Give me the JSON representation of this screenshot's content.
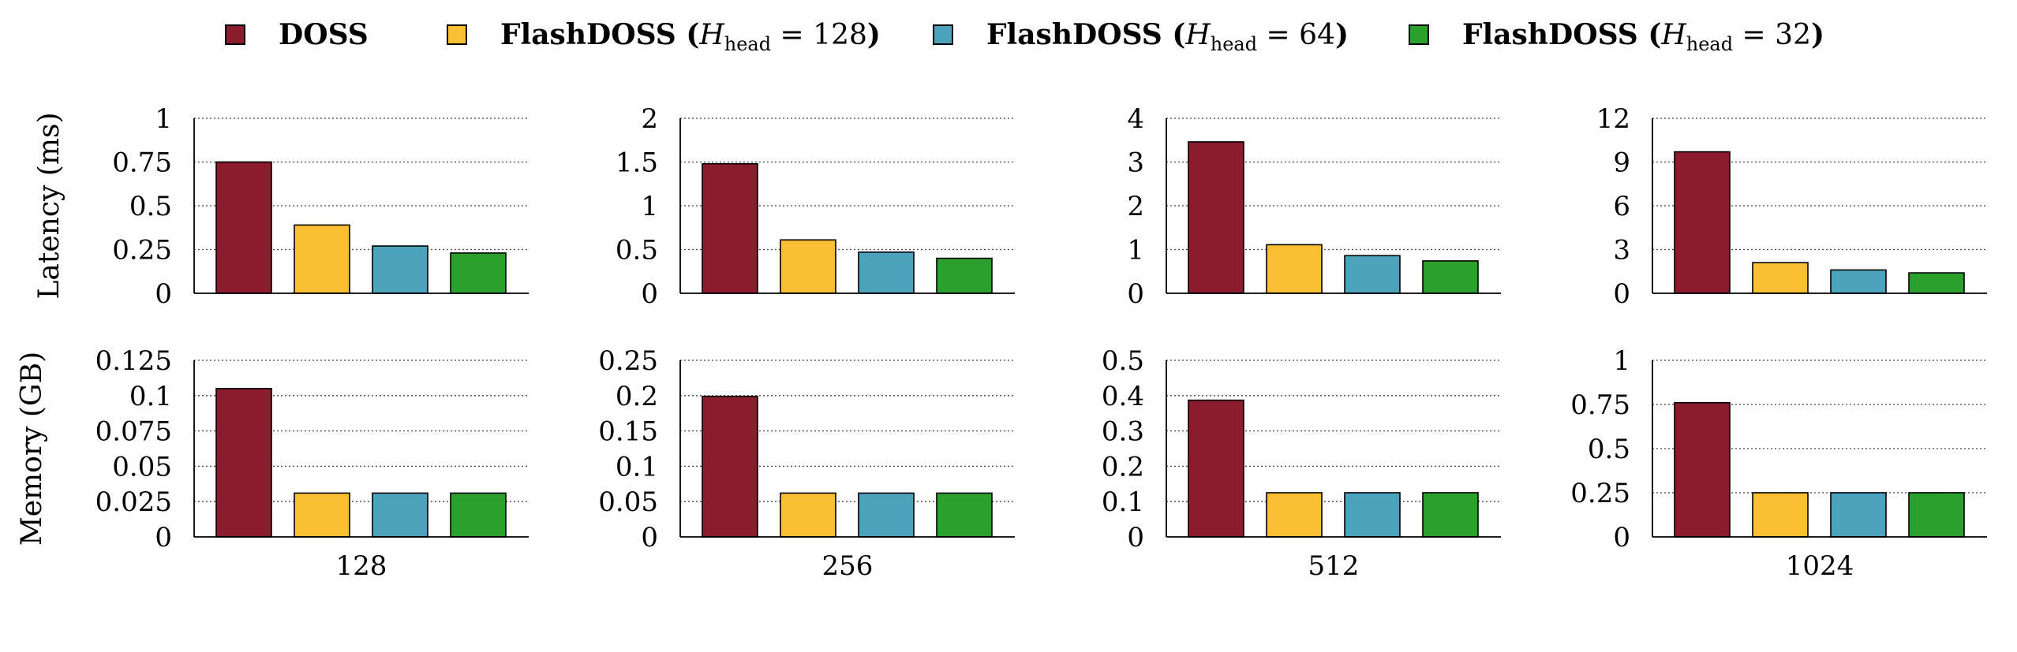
{
  "legend": [
    {
      "name": "DOSS",
      "prefix": "DOSS",
      "hvar": "",
      "hsub": "",
      "hval": "",
      "color": "#8B1C2E"
    },
    {
      "name": "FlashDOSS (H_head = 128)",
      "prefix": "FlashDOSS (",
      "hvar": "H",
      "hsub": "head",
      "hval": "128",
      "color": "#FBBF33"
    },
    {
      "name": "FlashDOSS (H_head = 64)",
      "prefix": "FlashDOSS (",
      "hvar": "H",
      "hsub": "head",
      "hval": "64",
      "color": "#4EA3BC"
    },
    {
      "name": "FlashDOSS (H_head = 32)",
      "prefix": "FlashDOSS (",
      "hvar": "H",
      "hsub": "head",
      "hval": "32",
      "color": "#2CA02C"
    }
  ],
  "row_labels": [
    "Latency (ms)",
    "Memory (GB)"
  ],
  "chart_data": [
    {
      "type": "bar",
      "metric": "latency",
      "xlabel": "128",
      "ylabel": "Latency (ms)",
      "ylim": [
        0,
        1
      ],
      "yticks": [
        "0",
        "0.25",
        "0.5",
        "0.75",
        "1"
      ],
      "ytick_values": [
        0,
        0.25,
        0.5,
        0.75,
        1
      ],
      "grid": true,
      "values": [
        0.75,
        0.39,
        0.27,
        0.23
      ]
    },
    {
      "type": "bar",
      "metric": "latency",
      "xlabel": "256",
      "ylabel": "",
      "ylim": [
        0,
        2
      ],
      "yticks": [
        "0",
        "0.5",
        "1",
        "1.5",
        "2"
      ],
      "ytick_values": [
        0,
        0.5,
        1,
        1.5,
        2
      ],
      "grid": true,
      "values": [
        1.48,
        0.61,
        0.47,
        0.4
      ]
    },
    {
      "type": "bar",
      "metric": "latency",
      "xlabel": "512",
      "ylabel": "",
      "ylim": [
        0,
        4
      ],
      "yticks": [
        "0",
        "1",
        "2",
        "3",
        "4"
      ],
      "ytick_values": [
        0,
        1,
        2,
        3,
        4
      ],
      "grid": true,
      "values": [
        3.46,
        1.11,
        0.86,
        0.74
      ]
    },
    {
      "type": "bar",
      "metric": "latency",
      "xlabel": "1024",
      "ylabel": "",
      "ylim": [
        0,
        12
      ],
      "yticks": [
        "0",
        "3",
        "6",
        "9",
        "12"
      ],
      "ytick_values": [
        0,
        3,
        6,
        9,
        12
      ],
      "grid": true,
      "values": [
        9.7,
        2.1,
        1.6,
        1.4
      ]
    },
    {
      "type": "bar",
      "metric": "memory",
      "xlabel": "128",
      "ylabel": "Memory (GB)",
      "ylim": [
        0,
        0.125
      ],
      "yticks": [
        "0",
        "0.025",
        "0.05",
        "0.075",
        "0.1",
        "0.125"
      ],
      "ytick_values": [
        0,
        0.025,
        0.05,
        0.075,
        0.1,
        0.125
      ],
      "grid": true,
      "values": [
        0.105,
        0.031,
        0.031,
        0.031
      ]
    },
    {
      "type": "bar",
      "metric": "memory",
      "xlabel": "256",
      "ylabel": "",
      "ylim": [
        0,
        0.25
      ],
      "yticks": [
        "0",
        "0.05",
        "0.1",
        "0.15",
        "0.2",
        "0.25"
      ],
      "ytick_values": [
        0,
        0.05,
        0.1,
        0.15,
        0.2,
        0.25
      ],
      "grid": true,
      "values": [
        0.199,
        0.062,
        0.062,
        0.062
      ]
    },
    {
      "type": "bar",
      "metric": "memory",
      "xlabel": "512",
      "ylabel": "",
      "ylim": [
        0,
        0.5
      ],
      "yticks": [
        "0",
        "0.1",
        "0.2",
        "0.3",
        "0.4",
        "0.5"
      ],
      "ytick_values": [
        0,
        0.1,
        0.2,
        0.3,
        0.4,
        0.5
      ],
      "grid": true,
      "values": [
        0.387,
        0.125,
        0.125,
        0.125
      ]
    },
    {
      "type": "bar",
      "metric": "memory",
      "xlabel": "1024",
      "ylabel": "",
      "ylim": [
        0,
        1
      ],
      "yticks": [
        "0",
        "0.25",
        "0.5",
        "0.75",
        "1"
      ],
      "ytick_values": [
        0,
        0.25,
        0.5,
        0.75,
        1
      ],
      "grid": true,
      "values": [
        0.76,
        0.25,
        0.25,
        0.25
      ]
    }
  ]
}
